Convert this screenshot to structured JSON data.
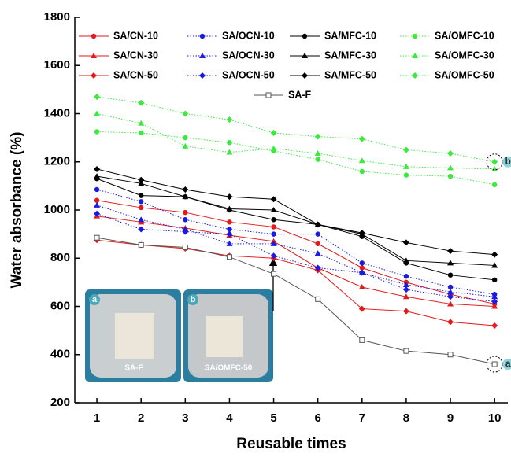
{
  "chart_data": {
    "type": "line",
    "x_label": "Reusable times",
    "y_label": "Water absorbance (%)",
    "x": [
      1,
      2,
      3,
      4,
      5,
      6,
      7,
      8,
      9,
      10
    ],
    "xlim": [
      0.5,
      10.3
    ],
    "xticks": [
      1,
      2,
      3,
      4,
      5,
      6,
      7,
      8,
      9,
      10
    ],
    "ylim": [
      200,
      1800
    ],
    "yticks": [
      200,
      400,
      600,
      800,
      1000,
      1200,
      1400,
      1600,
      1800
    ],
    "series": [
      {
        "name": "SA/CN-10",
        "color": "#e31a1c",
        "marker": "circle",
        "style": "solid",
        "values": [
          1040,
          1010,
          990,
          950,
          930,
          860,
          760,
          700,
          650,
          610
        ]
      },
      {
        "name": "SA/CN-30",
        "color": "#e31a1c",
        "marker": "triangle",
        "style": "solid",
        "values": [
          975,
          950,
          925,
          895,
          870,
          760,
          680,
          640,
          610,
          600
        ]
      },
      {
        "name": "SA/CN-50",
        "color": "#e31a1c",
        "marker": "diamond",
        "style": "solid",
        "values": [
          875,
          855,
          840,
          810,
          800,
          750,
          590,
          580,
          535,
          520
        ]
      },
      {
        "name": "SA/OCN-10",
        "color": "#1a1ae0",
        "marker": "circle",
        "style": "dotted",
        "values": [
          1085,
          1035,
          960,
          920,
          900,
          900,
          780,
          725,
          680,
          650
        ]
      },
      {
        "name": "SA/OCN-30",
        "color": "#1a1ae0",
        "marker": "triangle",
        "style": "dotted",
        "values": [
          1020,
          960,
          920,
          860,
          860,
          820,
          740,
          690,
          660,
          640
        ]
      },
      {
        "name": "SA/OCN-50",
        "color": "#1a1ae0",
        "marker": "diamond",
        "style": "dotted",
        "values": [
          985,
          920,
          910,
          900,
          810,
          760,
          740,
          670,
          640,
          620
        ]
      },
      {
        "name": "SA/MFC-10",
        "color": "#000000",
        "marker": "circle",
        "style": "solid",
        "values": [
          1130,
          1060,
          1055,
          1000,
          960,
          940,
          890,
          780,
          730,
          710
        ]
      },
      {
        "name": "SA/MFC-30",
        "color": "#000000",
        "marker": "triangle",
        "style": "solid",
        "values": [
          1140,
          1110,
          1055,
          1005,
          1000,
          940,
          900,
          790,
          780,
          770
        ]
      },
      {
        "name": "SA/MFC-50",
        "color": "#000000",
        "marker": "diamond",
        "style": "solid",
        "values": [
          1170,
          1125,
          1085,
          1055,
          1045,
          940,
          905,
          865,
          830,
          815
        ]
      },
      {
        "name": "SA/OMFC-10",
        "color": "#3ee83e",
        "marker": "circle",
        "style": "dotted",
        "values": [
          1325,
          1320,
          1300,
          1280,
          1245,
          1210,
          1160,
          1145,
          1140,
          1105
        ]
      },
      {
        "name": "SA/OMFC-30",
        "color": "#3ee83e",
        "marker": "triangle",
        "style": "dotted",
        "values": [
          1400,
          1360,
          1265,
          1240,
          1255,
          1235,
          1205,
          1180,
          1175,
          1170
        ]
      },
      {
        "name": "SA/OMFC-50",
        "color": "#3ee83e",
        "marker": "diamond",
        "style": "dotted",
        "values": [
          1470,
          1445,
          1400,
          1375,
          1320,
          1305,
          1295,
          1250,
          1235,
          1200
        ]
      },
      {
        "name": "SA-F",
        "color": "#555555",
        "marker": "square-open",
        "style": "solid",
        "values": [
          885,
          855,
          845,
          805,
          735,
          630,
          460,
          415,
          400,
          360
        ]
      }
    ],
    "callouts": [
      {
        "label": "a",
        "series": 12
      },
      {
        "label": "b",
        "series": 11
      }
    ],
    "insets": [
      {
        "label": "a",
        "caption": "SA-F"
      },
      {
        "label": "b",
        "caption": "SA/OMFC-50"
      }
    ]
  }
}
